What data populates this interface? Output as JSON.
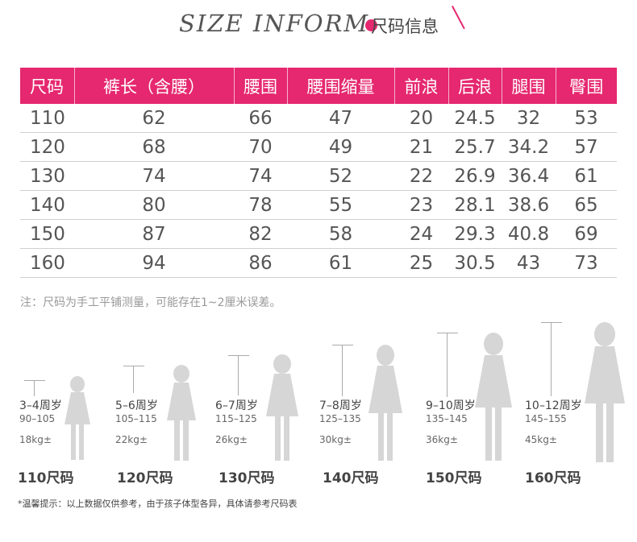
{
  "title": {
    "en": "SIZE INFORM",
    "cn": "尺码信息"
  },
  "table": {
    "headers": [
      "尺码",
      "裤长（含腰）",
      "腰围",
      "腰围缩量",
      "前浪",
      "后浪",
      "腿围",
      "臀围"
    ],
    "rows": [
      [
        "110",
        "62",
        "66",
        "47",
        "20",
        "24.5",
        "32",
        "53"
      ],
      [
        "120",
        "68",
        "70",
        "49",
        "21",
        "25.7",
        "34.2",
        "57"
      ],
      [
        "130",
        "74",
        "74",
        "52",
        "22",
        "26.9",
        "36.4",
        "61"
      ],
      [
        "140",
        "80",
        "78",
        "55",
        "23",
        "28.1",
        "38.6",
        "65"
      ],
      [
        "150",
        "87",
        "82",
        "58",
        "24",
        "29.3",
        "40.8",
        "69"
      ],
      [
        "160",
        "94",
        "86",
        "61",
        "25",
        "30.5",
        "43",
        "73"
      ]
    ]
  },
  "note": "注：尺码为手工平铺测量，可能存在1~2厘米误差。",
  "figures": [
    {
      "age": "3–4周岁",
      "height": "90–105",
      "weight": "18kg±",
      "size": "110尺码"
    },
    {
      "age": "5–6周岁",
      "height": "105–115",
      "weight": "22kg±",
      "size": "120尺码"
    },
    {
      "age": "6–7周岁",
      "height": "115–125",
      "weight": "26kg±",
      "size": "130尺码"
    },
    {
      "age": "7–8周岁",
      "height": "125–135",
      "weight": "30kg±",
      "size": "140尺码"
    },
    {
      "age": "9–10周岁",
      "height": "135–145",
      "weight": "36kg±",
      "size": "150尺码"
    },
    {
      "age": "10–12周岁",
      "height": "145–155",
      "weight": "45kg±",
      "size": "160尺码"
    }
  ],
  "tip": "*温馨提示：以上数据仅供参考，由于孩子体型各异，具体请参考尺码表",
  "colors": {
    "accent": "#e5286f",
    "silhouette": "#d6d6d6"
  }
}
